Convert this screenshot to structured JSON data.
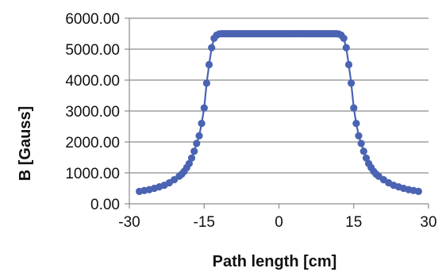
{
  "chart_data": {
    "type": "scatter",
    "title": "",
    "xlabel": "Path length [cm]",
    "ylabel": "B [Gauss]",
    "xlim": [
      -30,
      30
    ],
    "ylim": [
      0,
      6000
    ],
    "x_ticks": [
      "-30",
      "-15",
      "0",
      "15",
      "30"
    ],
    "y_ticks": [
      "0.00",
      "1000.00",
      "2000.00",
      "3000.00",
      "4000.00",
      "5000.00",
      "6000.00"
    ],
    "grid": "horizontal",
    "legend": "none",
    "series_color": "#4a63b3",
    "series": [
      {
        "x": [
          -28,
          -27,
          -26,
          -25,
          -24,
          -23,
          -22,
          -21,
          -20,
          -19.5,
          -19,
          -18.5,
          -18,
          -17.5,
          -17,
          -16.5,
          -16,
          -15.5,
          -15,
          -14.5,
          -14,
          -13.5,
          -13,
          -12.5,
          -12,
          -11.5,
          -11,
          -10.5,
          -10,
          -9.5,
          -9,
          -8.5,
          -8,
          -7.5,
          -7,
          -6.5,
          -6,
          -5.5,
          -5,
          -4.5,
          -4,
          -3.5,
          -3,
          -2.5,
          -2,
          -1.5,
          -1,
          -0.5,
          0,
          0.5,
          1,
          1.5,
          2,
          2.5,
          3,
          3.5,
          4,
          4.5,
          5,
          5.5,
          6,
          6.5,
          7,
          7.5,
          8,
          8.5,
          9,
          9.5,
          10,
          10.5,
          11,
          11.5,
          12,
          12.5,
          13,
          13.5,
          14,
          14.5,
          15,
          15.5,
          16,
          16.5,
          17,
          17.5,
          18,
          18.5,
          19,
          19.5,
          20,
          21,
          22,
          23,
          24,
          25,
          26,
          27,
          28
        ],
        "y": [
          400,
          430,
          460,
          500,
          550,
          600,
          680,
          780,
          890,
          960,
          1050,
          1170,
          1300,
          1480,
          1700,
          1950,
          2200,
          2600,
          3100,
          3900,
          4500,
          5050,
          5350,
          5450,
          5490,
          5500,
          5500,
          5500,
          5500,
          5500,
          5500,
          5500,
          5500,
          5500,
          5500,
          5500,
          5500,
          5500,
          5500,
          5500,
          5500,
          5500,
          5500,
          5500,
          5500,
          5500,
          5500,
          5500,
          5500,
          5500,
          5500,
          5500,
          5500,
          5500,
          5500,
          5500,
          5500,
          5500,
          5500,
          5500,
          5500,
          5500,
          5500,
          5500,
          5500,
          5500,
          5500,
          5500,
          5500,
          5500,
          5500,
          5500,
          5490,
          5450,
          5350,
          5050,
          4500,
          3900,
          3100,
          2600,
          2200,
          1950,
          1700,
          1480,
          1300,
          1170,
          1050,
          960,
          890,
          780,
          680,
          600,
          550,
          500,
          460,
          430,
          400
        ]
      }
    ]
  }
}
